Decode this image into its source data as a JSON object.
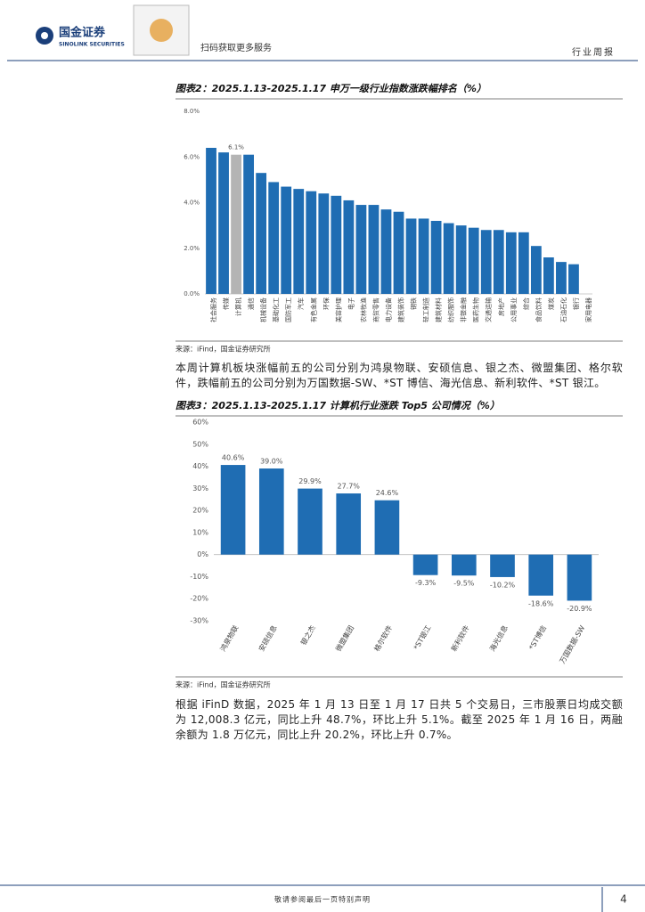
{
  "header": {
    "logo_cn": "国金证券",
    "logo_en": "SINOLINK SECURITIES",
    "qr_text": "扫码获取更多服务",
    "report_type": "行业周报"
  },
  "chart_data": [
    {
      "type": "bar",
      "title": "图表2：2025.1.13-2025.1.17 申万一级行业指数涨跌幅排名（%）",
      "categories": [
        "社会服务",
        "传媒",
        "计算机",
        "通信",
        "机械设备",
        "基础化工",
        "国防军工",
        "汽车",
        "有色金属",
        "环保",
        "美容护理",
        "电子",
        "农林牧渔",
        "商贸零售",
        "电力设备",
        "建筑装饰",
        "钢铁",
        "轻工制造",
        "建筑材料",
        "纺织服饰",
        "非银金融",
        "医药生物",
        "交通运输",
        "房地产",
        "公用事业",
        "综合",
        "食品饮料",
        "煤炭",
        "石油石化",
        "银行",
        "家用电器"
      ],
      "values": [
        6.4,
        6.2,
        6.1,
        6.1,
        5.3,
        4.9,
        4.7,
        4.6,
        4.5,
        4.4,
        4.3,
        4.1,
        3.9,
        3.9,
        3.7,
        3.6,
        3.3,
        3.3,
        3.2,
        3.1,
        3.0,
        2.9,
        2.8,
        2.8,
        2.7,
        2.7,
        2.1,
        1.6,
        1.4,
        1.3,
        0.0
      ],
      "value_labels": [
        null,
        null,
        "6.1%",
        null,
        null,
        null,
        null,
        null,
        null,
        null,
        null,
        null,
        null,
        null,
        null,
        null,
        null,
        null,
        null,
        null,
        null,
        null,
        null,
        null,
        null,
        null,
        null,
        null,
        null,
        null,
        null
      ],
      "colors": [
        "#1f6db3",
        "#1f6db3",
        "#b4b4b4",
        "#1f6db3",
        "#1f6db3",
        "#1f6db3",
        "#1f6db3",
        "#1f6db3",
        "#1f6db3",
        "#1f6db3",
        "#1f6db3",
        "#1f6db3",
        "#1f6db3",
        "#1f6db3",
        "#1f6db3",
        "#1f6db3",
        "#1f6db3",
        "#1f6db3",
        "#1f6db3",
        "#1f6db3",
        "#1f6db3",
        "#1f6db3",
        "#1f6db3",
        "#1f6db3",
        "#1f6db3",
        "#1f6db3",
        "#1f6db3",
        "#1f6db3",
        "#1f6db3",
        "#1f6db3",
        "#1f6db3"
      ],
      "ylim": [
        0,
        8
      ],
      "yticks": [
        {
          "value": 0,
          "label": "0.0%"
        },
        {
          "value": 2,
          "label": "2.0%"
        },
        {
          "value": 4,
          "label": "4.0%"
        },
        {
          "value": 6,
          "label": "6.0%"
        },
        {
          "value": 8,
          "label": "8.0%"
        }
      ],
      "source": "来源：iFind，国金证券研究所"
    },
    {
      "type": "bar",
      "title": "图表3：2025.1.13-2025.1.17 计算机行业涨跌 Top5 公司情况（%）",
      "categories": [
        "鸿泉物联",
        "安硕信息",
        "银之杰",
        "微盟集团",
        "格尔软件",
        "*ST银江",
        "新利软件",
        "海光信息",
        "*ST博信",
        "万国数据-SW"
      ],
      "values": [
        40.6,
        39.0,
        29.9,
        27.7,
        24.6,
        -9.3,
        -9.5,
        -10.2,
        -18.6,
        -20.9
      ],
      "value_labels": [
        "40.6%",
        "39.0%",
        "29.9%",
        "27.7%",
        "24.6%",
        "-9.3%",
        "-9.5%",
        "-10.2%",
        "-18.6%",
        "-20.9%"
      ],
      "color": "#1f6db3",
      "ylim": [
        -30,
        60
      ],
      "yticks": [
        {
          "value": -30,
          "label": "-30%"
        },
        {
          "value": -20,
          "label": "-20%"
        },
        {
          "value": -10,
          "label": "-10%"
        },
        {
          "value": 0,
          "label": "0%"
        },
        {
          "value": 10,
          "label": "10%"
        },
        {
          "value": 20,
          "label": "20%"
        },
        {
          "value": 30,
          "label": "30%"
        },
        {
          "value": 40,
          "label": "40%"
        },
        {
          "value": 50,
          "label": "50%"
        },
        {
          "value": 60,
          "label": "60%"
        }
      ],
      "source": "来源：iFind，国金证券研究所"
    }
  ],
  "paragraphs": [
    "本周计算机板块涨幅前五的公司分别为鸿泉物联、安硕信息、银之杰、微盟集团、格尔软件，跌幅前五的公司分别为万国数据-SW、*ST 博信、海光信息、新利软件、*ST 银江。",
    "根据 iFinD 数据，2025 年 1 月 13 日至 1 月 17 日共 5 个交易日，三市股票日均成交额为 12,008.3 亿元，同比上升 48.7%，环比上升 5.1%。截至 2025 年 1 月 16 日，两融余额为 1.8 万亿元，同比上升 20.2%，环比上升 0.7%。"
  ],
  "footer": {
    "disclaimer": "敬请参阅最后一页特别声明",
    "page": 4
  }
}
